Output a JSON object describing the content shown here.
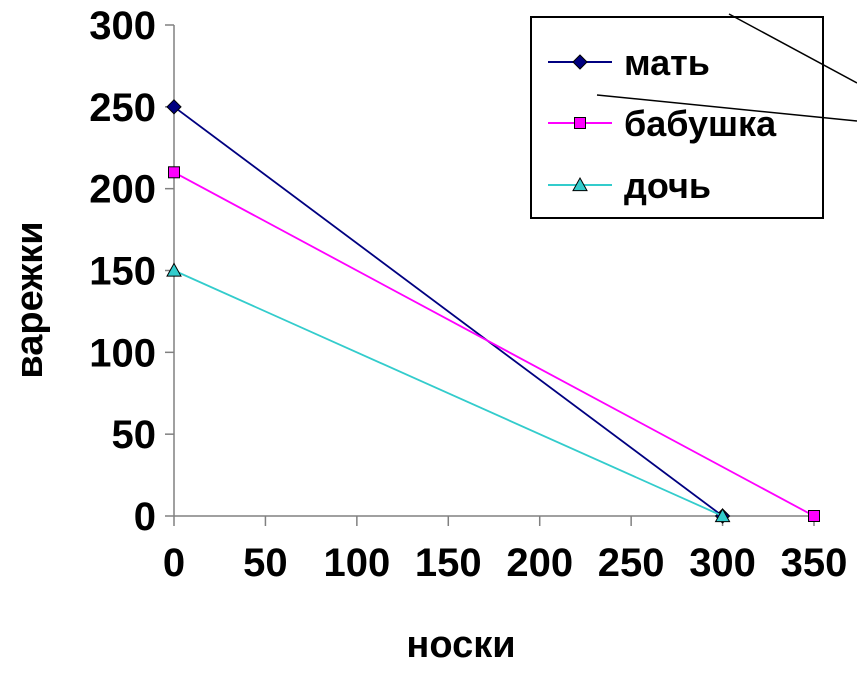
{
  "chart_data": {
    "type": "line",
    "xlabel": "носки",
    "ylabel": "варежки",
    "xlim": [
      0,
      350
    ],
    "ylim": [
      0,
      300
    ],
    "x_ticks": [
      0,
      50,
      100,
      150,
      200,
      250,
      300,
      350
    ],
    "y_ticks": [
      0,
      50,
      100,
      150,
      200,
      250,
      300
    ],
    "grid": false,
    "legend_position": "top-right",
    "series": [
      {
        "name": "мать",
        "color": "#000080",
        "marker": "diamond",
        "points": [
          [
            0,
            250
          ],
          [
            300,
            0
          ]
        ]
      },
      {
        "name": "бабушка",
        "color": "#ff00ff",
        "marker": "square",
        "points": [
          [
            0,
            210
          ],
          [
            350,
            0
          ]
        ]
      },
      {
        "name": "дочь",
        "color": "#33cccc",
        "marker": "triangle",
        "points": [
          [
            0,
            150
          ],
          [
            300,
            0
          ]
        ]
      }
    ]
  }
}
